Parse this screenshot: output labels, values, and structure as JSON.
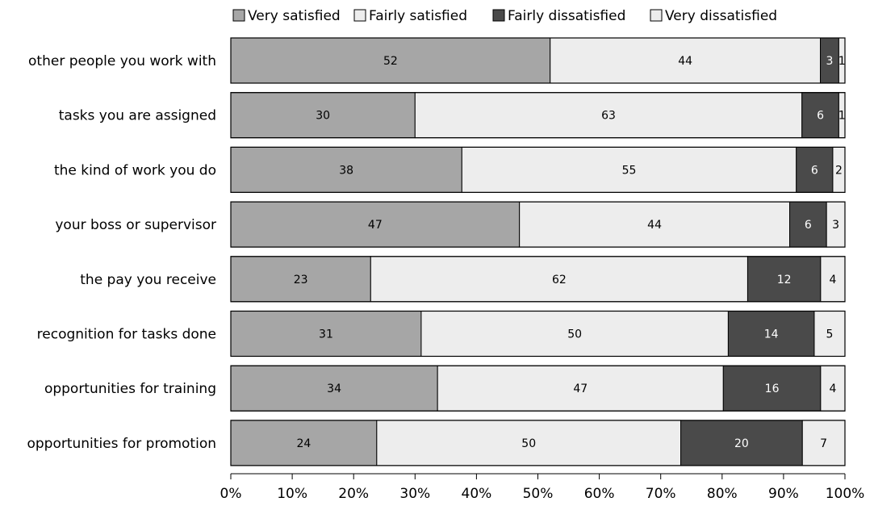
{
  "chart_data": {
    "type": "bar",
    "orientation": "horizontal",
    "stacked": true,
    "categories": [
      "other people you work with",
      "tasks you are assigned",
      "the kind of work you do",
      "your boss or supervisor",
      "the pay you receive",
      "recognition for tasks done",
      "opportunities for training",
      "opportunities for promotion"
    ],
    "series": [
      {
        "name": "Very satisfied",
        "color": "#a6a6a6",
        "label_color": "#000000",
        "values": [
          52,
          30,
          38,
          47,
          23,
          31,
          34,
          24
        ]
      },
      {
        "name": "Fairly satisfied",
        "color": "#ededed",
        "label_color": "#000000",
        "values": [
          44,
          63,
          55,
          44,
          62,
          50,
          47,
          50
        ]
      },
      {
        "name": "Fairly dissatisfied",
        "color": "#4a4a4a",
        "label_color": "#ffffff",
        "values": [
          3,
          6,
          6,
          6,
          12,
          14,
          16,
          20
        ]
      },
      {
        "name": "Very dissatisfied",
        "color": "#ededed",
        "label_color": "#000000",
        "values": [
          1,
          1,
          2,
          3,
          4,
          5,
          4,
          7
        ]
      }
    ],
    "xlim": [
      0,
      100
    ],
    "xticks": [
      "0%",
      "10%",
      "20%",
      "30%",
      "40%",
      "50%",
      "60%",
      "70%",
      "80%",
      "90%",
      "100%"
    ],
    "grid": false,
    "legend_position": "top"
  }
}
